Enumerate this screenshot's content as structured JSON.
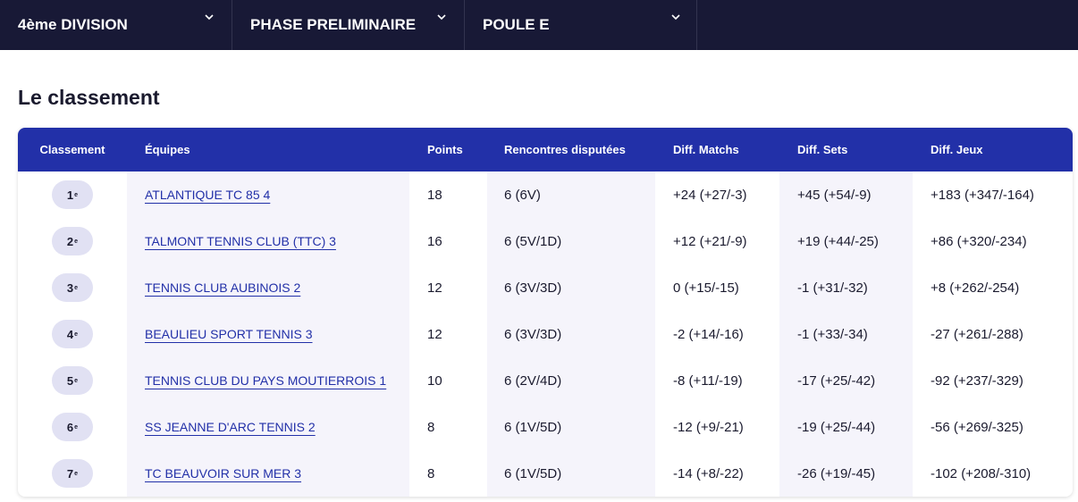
{
  "filters": [
    {
      "label": "4ème DIVISION"
    },
    {
      "label": "PHASE PRELIMINAIRE"
    },
    {
      "label": "POULE E"
    }
  ],
  "title": "Le classement",
  "columns": [
    "Classement",
    "Équipes",
    "Points",
    "Rencontres disputées",
    "Diff. Matchs",
    "Diff. Sets",
    "Diff. Jeux"
  ],
  "rows": [
    {
      "rank": "1",
      "sup": "e",
      "team": "ATLANTIQUE TC 85 4",
      "points": "18",
      "played": "6 (6V)",
      "matchs": "+24 (+27/-3)",
      "sets": "+45 (+54/-9)",
      "jeux": "+183 (+347/-164)"
    },
    {
      "rank": "2",
      "sup": "e",
      "team": "TALMONT TENNIS CLUB (TTC) 3",
      "points": "16",
      "played": "6 (5V/1D)",
      "matchs": "+12 (+21/-9)",
      "sets": "+19 (+44/-25)",
      "jeux": "+86 (+320/-234)"
    },
    {
      "rank": "3",
      "sup": "e",
      "team": "TENNIS CLUB AUBINOIS 2",
      "points": "12",
      "played": "6 (3V/3D)",
      "matchs": "0 (+15/-15)",
      "sets": "-1 (+31/-32)",
      "jeux": "+8 (+262/-254)"
    },
    {
      "rank": "4",
      "sup": "e",
      "team": "BEAULIEU SPORT TENNIS 3",
      "points": "12",
      "played": "6 (3V/3D)",
      "matchs": "-2 (+14/-16)",
      "sets": "-1 (+33/-34)",
      "jeux": "-27 (+261/-288)"
    },
    {
      "rank": "5",
      "sup": "e",
      "team": "TENNIS CLUB DU PAYS MOUTIERROIS 1",
      "points": "10",
      "played": "6 (2V/4D)",
      "matchs": "-8 (+11/-19)",
      "sets": "-17 (+25/-42)",
      "jeux": "-92 (+237/-329)"
    },
    {
      "rank": "6",
      "sup": "e",
      "team": "SS JEANNE D'ARC TENNIS 2",
      "points": "8",
      "played": "6 (1V/5D)",
      "matchs": "-12 (+9/-21)",
      "sets": "-19 (+25/-44)",
      "jeux": "-56 (+269/-325)"
    },
    {
      "rank": "7",
      "sup": "e",
      "team": "TC BEAUVOIR SUR MER 3",
      "points": "8",
      "played": "6 (1V/5D)",
      "matchs": "-14 (+8/-22)",
      "sets": "-26 (+19/-45)",
      "jeux": "-102 (+208/-310)"
    }
  ]
}
